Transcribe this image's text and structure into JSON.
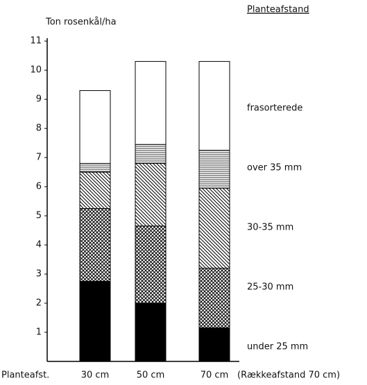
{
  "chart_data": {
    "type": "stacked_bar",
    "y_label": "Ton rosenkål/ha",
    "legend_title": "Planteafstand",
    "x_label": "Planteafst.",
    "x_note": "(Rækkeafstand 70 cm)",
    "categories": [
      "30 cm",
      "50 cm",
      "70 cm"
    ],
    "series": [
      {
        "name": "under 25 mm",
        "color": "#000000",
        "values": [
          2.75,
          2.0,
          1.15
        ]
      },
      {
        "name": "25-30 mm",
        "color": "#000000",
        "values": [
          2.5,
          2.65,
          2.05
        ]
      },
      {
        "name": "30-35 mm",
        "color": "#000000",
        "values": [
          1.25,
          2.15,
          2.75
        ]
      },
      {
        "name": "over 35 mm",
        "color": "#000000",
        "values": [
          0.3,
          0.65,
          1.3
        ]
      },
      {
        "name": "frasorterede",
        "color": "#000000",
        "values": [
          2.5,
          2.85,
          3.05
        ]
      }
    ],
    "ylim": [
      0,
      11.1
    ],
    "yticks": [
      1,
      2,
      3,
      4,
      5,
      6,
      7,
      8,
      9,
      10,
      11
    ]
  }
}
